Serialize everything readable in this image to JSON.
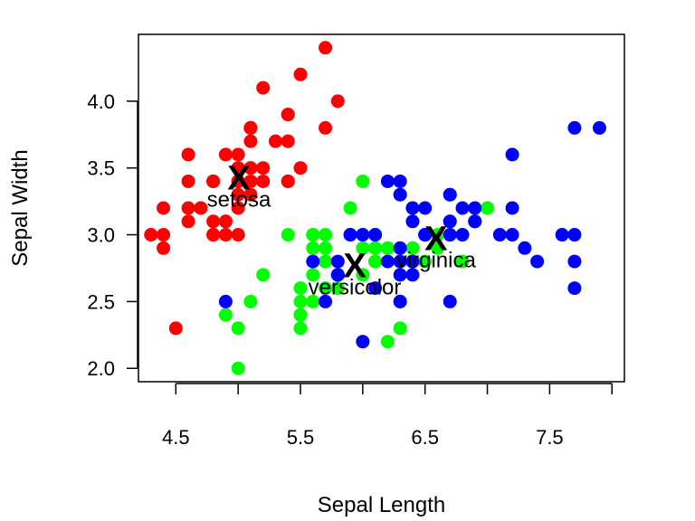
{
  "chart_data": {
    "type": "scatter",
    "title": "",
    "xlabel": "Sepal Length",
    "ylabel": "Sepal Width",
    "xlim": [
      4.2,
      8.1
    ],
    "ylim": [
      1.9,
      4.5
    ],
    "x_ticks": [
      "4.5",
      "5.5",
      "6.5",
      "7.5"
    ],
    "x_tick_values": [
      4.5,
      5.5,
      6.5,
      7.5
    ],
    "x_minor_ticks": [
      5.0,
      6.0,
      7.0,
      8.0
    ],
    "y_ticks": [
      "2.0",
      "2.5",
      "3.0",
      "3.5",
      "4.0"
    ],
    "y_tick_values": [
      2.0,
      2.5,
      3.0,
      3.5,
      4.0
    ],
    "grid": false,
    "series": [
      {
        "color": "#ff0000",
        "points": [
          [
            5.1,
            3.5
          ],
          [
            4.9,
            3.0
          ],
          [
            4.7,
            3.2
          ],
          [
            4.6,
            3.1
          ],
          [
            5.0,
            3.6
          ],
          [
            5.4,
            3.9
          ],
          [
            4.6,
            3.4
          ],
          [
            5.0,
            3.4
          ],
          [
            4.4,
            2.9
          ],
          [
            4.9,
            3.1
          ],
          [
            5.4,
            3.7
          ],
          [
            4.8,
            3.4
          ],
          [
            4.8,
            3.0
          ],
          [
            4.3,
            3.0
          ],
          [
            5.8,
            4.0
          ],
          [
            5.7,
            4.4
          ],
          [
            5.4,
            3.9
          ],
          [
            5.1,
            3.5
          ],
          [
            5.7,
            3.8
          ],
          [
            5.1,
            3.8
          ],
          [
            5.4,
            3.4
          ],
          [
            5.1,
            3.7
          ],
          [
            4.6,
            3.6
          ],
          [
            5.1,
            3.3
          ],
          [
            4.8,
            3.4
          ],
          [
            5.0,
            3.0
          ],
          [
            5.0,
            3.4
          ],
          [
            5.2,
            3.5
          ],
          [
            5.2,
            3.4
          ],
          [
            4.7,
            3.2
          ],
          [
            4.8,
            3.1
          ],
          [
            5.4,
            3.4
          ],
          [
            5.2,
            4.1
          ],
          [
            5.5,
            4.2
          ],
          [
            4.9,
            3.1
          ],
          [
            5.0,
            3.2
          ],
          [
            5.5,
            3.5
          ],
          [
            4.9,
            3.6
          ],
          [
            4.4,
            3.0
          ],
          [
            5.1,
            3.4
          ],
          [
            5.0,
            3.5
          ],
          [
            4.5,
            2.3
          ],
          [
            4.4,
            3.2
          ],
          [
            5.0,
            3.5
          ],
          [
            5.1,
            3.8
          ],
          [
            4.8,
            3.0
          ],
          [
            5.1,
            3.8
          ],
          [
            4.6,
            3.2
          ],
          [
            5.3,
            3.7
          ],
          [
            5.0,
            3.3
          ]
        ]
      },
      {
        "color": "#00ff00",
        "points": [
          [
            7.0,
            3.2
          ],
          [
            6.4,
            3.2
          ],
          [
            6.9,
            3.1
          ],
          [
            5.5,
            2.3
          ],
          [
            6.5,
            2.8
          ],
          [
            5.7,
            2.8
          ],
          [
            6.3,
            3.3
          ],
          [
            4.9,
            2.4
          ],
          [
            6.6,
            2.9
          ],
          [
            5.2,
            2.7
          ],
          [
            5.0,
            2.0
          ],
          [
            5.9,
            3.0
          ],
          [
            6.0,
            2.2
          ],
          [
            6.1,
            2.9
          ],
          [
            5.6,
            2.9
          ],
          [
            6.7,
            3.1
          ],
          [
            5.6,
            3.0
          ],
          [
            5.8,
            2.7
          ],
          [
            6.2,
            2.2
          ],
          [
            5.6,
            2.5
          ],
          [
            5.9,
            3.2
          ],
          [
            6.1,
            2.8
          ],
          [
            6.3,
            2.5
          ],
          [
            6.1,
            2.8
          ],
          [
            6.4,
            2.9
          ],
          [
            6.6,
            3.0
          ],
          [
            6.8,
            2.8
          ],
          [
            6.7,
            3.0
          ],
          [
            6.0,
            2.9
          ],
          [
            5.7,
            2.6
          ],
          [
            5.5,
            2.4
          ],
          [
            5.5,
            2.4
          ],
          [
            5.8,
            2.7
          ],
          [
            6.0,
            2.7
          ],
          [
            5.4,
            3.0
          ],
          [
            6.0,
            3.4
          ],
          [
            6.7,
            3.1
          ],
          [
            6.3,
            2.3
          ],
          [
            5.6,
            3.0
          ],
          [
            5.5,
            2.5
          ],
          [
            5.5,
            2.6
          ],
          [
            6.1,
            3.0
          ],
          [
            5.8,
            2.6
          ],
          [
            5.0,
            2.3
          ],
          [
            5.6,
            2.7
          ],
          [
            5.7,
            3.0
          ],
          [
            5.7,
            2.9
          ],
          [
            6.2,
            2.9
          ],
          [
            5.1,
            2.5
          ],
          [
            5.7,
            2.8
          ]
        ]
      },
      {
        "color": "#0000ff",
        "points": [
          [
            6.3,
            3.3
          ],
          [
            5.8,
            2.7
          ],
          [
            7.1,
            3.0
          ],
          [
            6.3,
            2.9
          ],
          [
            6.5,
            3.0
          ],
          [
            7.6,
            3.0
          ],
          [
            4.9,
            2.5
          ],
          [
            7.3,
            2.9
          ],
          [
            6.7,
            2.5
          ],
          [
            7.2,
            3.6
          ],
          [
            6.5,
            3.2
          ],
          [
            6.4,
            2.7
          ],
          [
            6.8,
            3.0
          ],
          [
            5.7,
            2.5
          ],
          [
            5.8,
            2.8
          ],
          [
            6.4,
            3.2
          ],
          [
            6.5,
            3.0
          ],
          [
            7.7,
            3.8
          ],
          [
            7.7,
            2.6
          ],
          [
            6.0,
            2.2
          ],
          [
            6.9,
            3.2
          ],
          [
            5.6,
            2.8
          ],
          [
            7.7,
            2.8
          ],
          [
            6.3,
            2.7
          ],
          [
            6.7,
            3.3
          ],
          [
            7.2,
            3.2
          ],
          [
            6.2,
            2.8
          ],
          [
            6.1,
            3.0
          ],
          [
            6.4,
            2.8
          ],
          [
            7.2,
            3.0
          ],
          [
            7.4,
            2.8
          ],
          [
            7.9,
            3.8
          ],
          [
            6.4,
            2.8
          ],
          [
            6.3,
            2.8
          ],
          [
            6.1,
            2.6
          ],
          [
            7.7,
            3.0
          ],
          [
            6.3,
            3.4
          ],
          [
            6.4,
            3.1
          ],
          [
            6.0,
            3.0
          ],
          [
            6.9,
            3.1
          ],
          [
            6.7,
            3.1
          ],
          [
            6.9,
            3.1
          ],
          [
            5.8,
            2.7
          ],
          [
            6.8,
            3.2
          ],
          [
            6.7,
            3.3
          ],
          [
            6.7,
            3.0
          ],
          [
            6.3,
            2.5
          ],
          [
            6.5,
            3.0
          ],
          [
            6.2,
            3.4
          ],
          [
            5.9,
            3.0
          ]
        ]
      }
    ],
    "centers": [
      {
        "label": "setosa",
        "x": 5.006,
        "y": 3.428
      },
      {
        "label": "versicolor",
        "x": 5.936,
        "y": 2.77
      },
      {
        "label": "virginica",
        "x": 6.588,
        "y": 2.974
      }
    ],
    "center_marker": "X"
  }
}
